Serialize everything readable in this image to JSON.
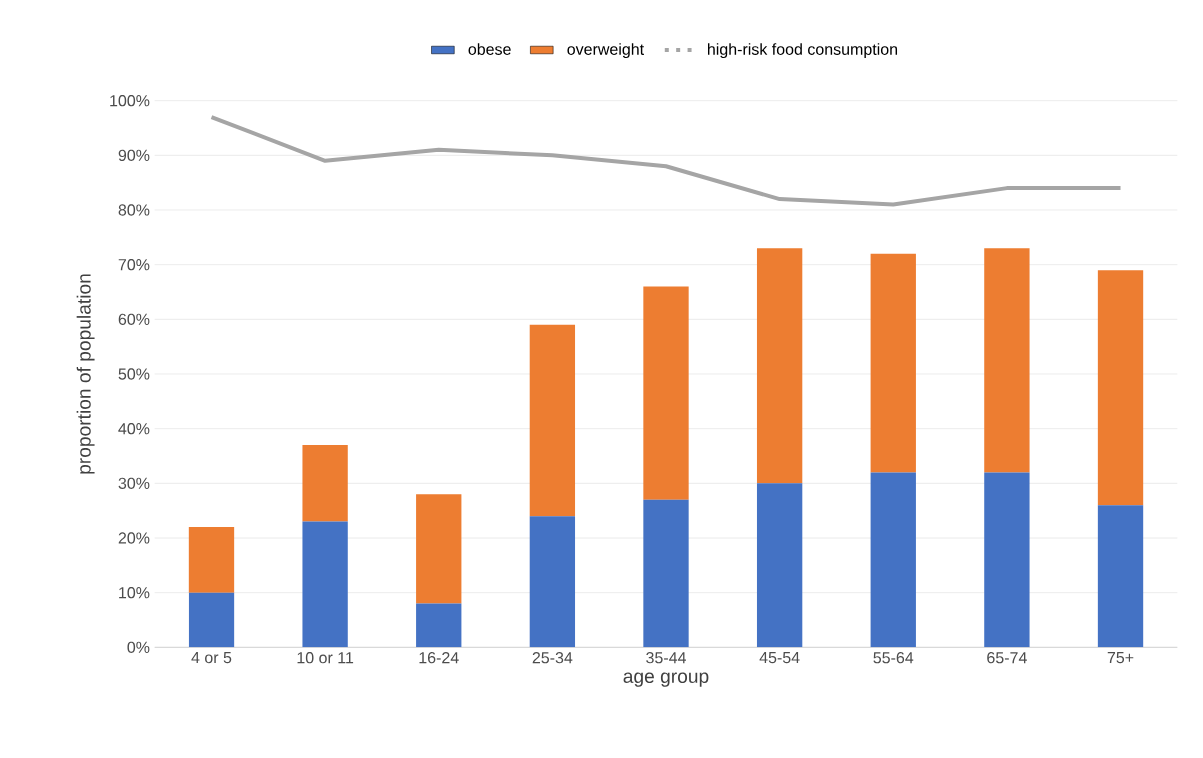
{
  "chart_data": {
    "type": "bar",
    "stacked": true,
    "xlabel": "age group",
    "ylabel": "proportion of population",
    "categories": [
      "4 or 5",
      "10 or 11",
      "16-24",
      "25-34",
      "35-44",
      "45-54",
      "55-64",
      "65-74",
      "75+"
    ],
    "series": [
      {
        "name": "obese",
        "color": "#4472c4",
        "values": [
          10,
          23,
          8,
          24,
          27,
          30,
          32,
          32,
          26
        ]
      },
      {
        "name": "overweight",
        "color": "#ed7d31",
        "values": [
          12,
          14,
          20,
          35,
          39,
          43,
          40,
          41,
          43
        ]
      },
      {
        "name": "high-risk food consumption",
        "type": "line",
        "color": "#a5a5a5",
        "values": [
          97,
          89,
          91,
          90,
          88,
          82,
          81,
          84,
          84
        ]
      }
    ],
    "ylim": [
      0,
      100
    ],
    "yticks": [
      {
        "value": 0,
        "label": "0%"
      },
      {
        "value": 10,
        "label": "10%"
      },
      {
        "value": 20,
        "label": "20%"
      },
      {
        "value": 30,
        "label": "30%"
      },
      {
        "value": 40,
        "label": "40%"
      },
      {
        "value": 50,
        "label": "50%"
      },
      {
        "value": 60,
        "label": "60%"
      },
      {
        "value": 70,
        "label": "70%"
      },
      {
        "value": 80,
        "label": "80%"
      },
      {
        "value": 90,
        "label": "90%"
      },
      {
        "value": 100,
        "label": "100%"
      }
    ],
    "grid": "y",
    "legend": "top"
  }
}
